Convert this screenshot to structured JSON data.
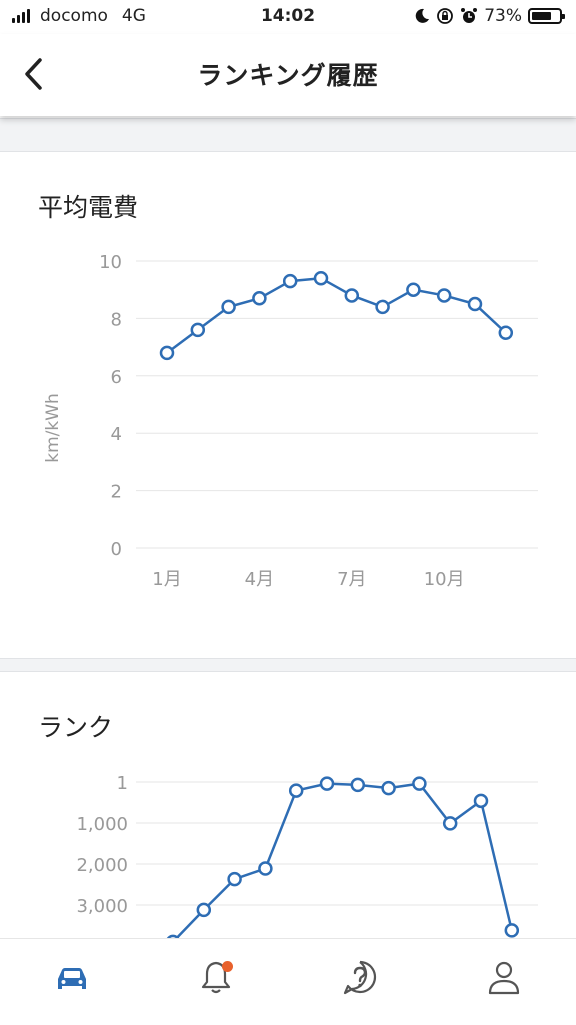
{
  "status_bar": {
    "carrier": "docomo",
    "network": "4G",
    "time": "14:02",
    "battery": "73%",
    "battery_level": 0.73
  },
  "header": {
    "title": "ランキング履歴",
    "back_icon": "chevron-left-icon"
  },
  "efficiency_card": {
    "title": "平均電費"
  },
  "rank_card": {
    "title": "ランク"
  },
  "chart_data": [
    {
      "type": "line",
      "title": "平均電費",
      "ylabel": "km/kWh",
      "xlabel": "",
      "ylim": [
        0,
        10
      ],
      "yticks": [
        "10",
        "8",
        "6",
        "4",
        "2",
        "0"
      ],
      "ytick_values": [
        10,
        8,
        6,
        4,
        2,
        0
      ],
      "x": [
        1,
        2,
        3,
        4,
        5,
        6,
        7,
        8,
        9,
        10,
        11,
        12
      ],
      "xtick_labels": [
        "1月",
        "4月",
        "7月",
        "10月"
      ],
      "xtick_positions": [
        1,
        4,
        7,
        10
      ],
      "values": [
        6.8,
        7.6,
        8.4,
        8.7,
        9.3,
        9.4,
        8.8,
        8.4,
        9.0,
        8.8,
        8.5,
        7.5
      ],
      "grid": true,
      "color": "#2e6db4"
    },
    {
      "type": "line",
      "title": "ランク",
      "ylabel": "",
      "yticks": [
        "1",
        "1,000",
        "2,000",
        "3,000"
      ],
      "ytick_values": [
        1,
        1000,
        2000,
        3000
      ],
      "inverted": true,
      "x": [
        1,
        2,
        3,
        4,
        5,
        6,
        7,
        8,
        9,
        10,
        11,
        12
      ],
      "values": [
        3900,
        3120,
        2370,
        2110,
        210,
        40,
        70,
        150,
        40,
        1010,
        460,
        3620
      ],
      "grid": true,
      "color": "#2e6db4"
    }
  ],
  "tabbar": {
    "items": [
      {
        "icon": "car-icon",
        "active": true
      },
      {
        "icon": "bell-icon",
        "badge": true
      },
      {
        "icon": "help-chat-icon"
      },
      {
        "icon": "person-icon"
      }
    ],
    "active_color": "#2e6db4",
    "badge_color": "#e8612c"
  }
}
